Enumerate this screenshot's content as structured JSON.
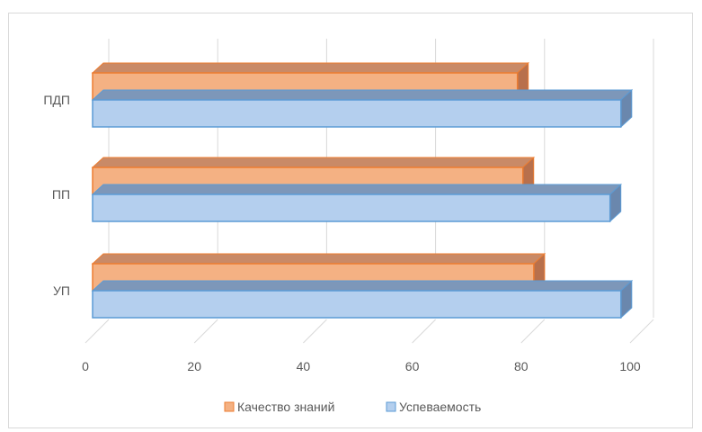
{
  "chart_data": {
    "type": "bar",
    "orientation": "horizontal",
    "style": "3d-clustered",
    "categories": [
      "ПДП",
      "ПП",
      "УП"
    ],
    "series": [
      {
        "name": "Качество знаний",
        "values": [
          78,
          79,
          81
        ],
        "color": "#f4b183",
        "edge": "#ed7d31",
        "top": "#c98a67",
        "side": "#b8704c"
      },
      {
        "name": "Успеваемость",
        "values": [
          97,
          95,
          97
        ],
        "color": "#b4cfee",
        "edge": "#5b9bd5",
        "top": "#7d97b9",
        "side": "#6a87ad"
      }
    ],
    "xlim": [
      0,
      100
    ],
    "xticks": [
      "0",
      "20",
      "40",
      "60",
      "80",
      "100"
    ],
    "grid": true,
    "legend": "bottom",
    "title": "",
    "xlabel": "",
    "ylabel": ""
  }
}
